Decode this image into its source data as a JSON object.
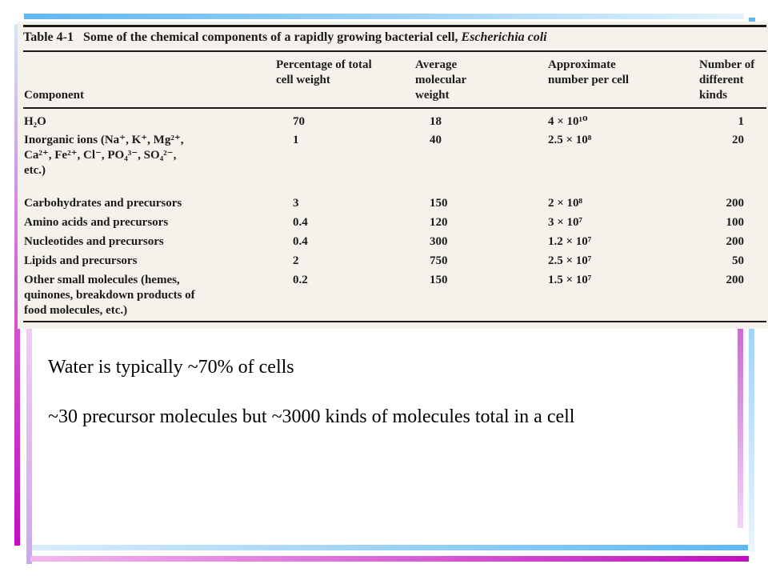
{
  "slide": {
    "bullets": [
      "Water is typically ~70% of cells",
      "~30 precursor molecules but ~3000 kinds of molecules total in a cell"
    ]
  },
  "table": {
    "label": "Table 4-1",
    "caption": "Some of the chemical components of a rapidly growing bacterial cell,",
    "caption_species": "Escherichia coli",
    "headers": [
      "Component",
      "Percentage of total cell weight",
      "Average molecular weight",
      "Approximate number per cell",
      "Number of different kinds"
    ],
    "rows": [
      {
        "component": "H₂O",
        "percent": "70",
        "mw": "18",
        "number": "4 × 10¹⁰",
        "kinds": "1"
      },
      {
        "component": "Inorganic ions (Na⁺, K⁺, Mg²⁺, Ca²⁺, Fe²⁺, Cl⁻, PO₄³⁻, SO₄²⁻, etc.)",
        "percent": "1",
        "mw": "40",
        "number": "2.5 × 10⁸",
        "kinds": "20"
      },
      {
        "component": "Carbohydrates and precursors",
        "percent": "3",
        "mw": "150",
        "number": "2 × 10⁸",
        "kinds": "200"
      },
      {
        "component": "Amino acids and precursors",
        "percent": "0.4",
        "mw": "120",
        "number": "3 × 10⁷",
        "kinds": "100"
      },
      {
        "component": "Nucleotides and precursors",
        "percent": "0.4",
        "mw": "300",
        "number": "1.2 × 10⁷",
        "kinds": "200"
      },
      {
        "component": "Lipids and precursors",
        "percent": "2",
        "mw": "750",
        "number": "2.5 × 10⁷",
        "kinds": "50"
      },
      {
        "component": "Other small molecules (hemes, quinones, breakdown products of food molecules, etc.)",
        "percent": "0.2",
        "mw": "150",
        "number": "1.5 × 10⁷",
        "kinds": "200"
      }
    ]
  }
}
